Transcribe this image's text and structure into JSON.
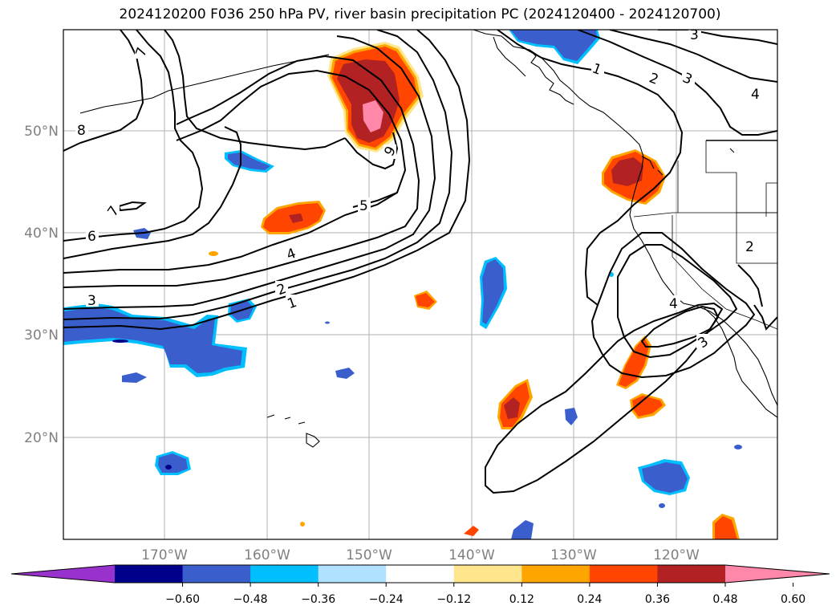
{
  "title": "2024120200 F036 250 hPa PV, river basin precipitation PC (2024120400 - 2024120700)",
  "lat_labels": [
    "50°N",
    "40°N",
    "30°N",
    "20°N"
  ],
  "lon_labels": [
    "170°W",
    "160°W",
    "150°W",
    "140°W",
    "130°W",
    "120°W"
  ],
  "contour_labels": [
    "8",
    "7",
    "7",
    "6",
    "5",
    "4",
    "3",
    "2",
    "1",
    "6",
    "1",
    "2",
    "3",
    "4",
    "3",
    "4",
    "2",
    "3"
  ],
  "colorbar": {
    "colors": [
      "#9932cc",
      "#00008b",
      "#3a5fcd",
      "#00bfff",
      "#b0e2ff",
      "#ffffff",
      "#ffe68c",
      "#ffa500",
      "#ff4500",
      "#b22222",
      "#ff88aa"
    ],
    "ticks": [
      "−0.60",
      "−0.48",
      "−0.36",
      "−0.24",
      "−0.12",
      "0.12",
      "0.24",
      "0.36",
      "0.48",
      "0.60"
    ]
  }
}
